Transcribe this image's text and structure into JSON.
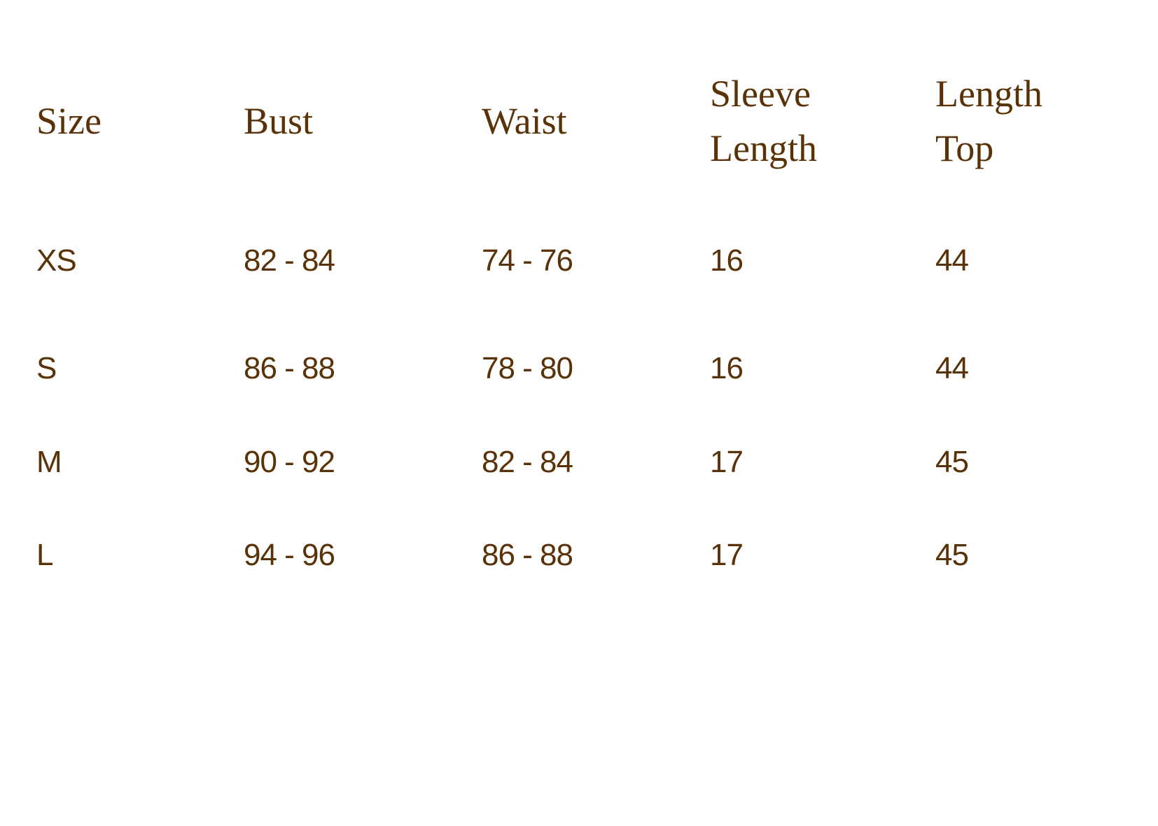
{
  "text_color": "#5a3208",
  "headers": [
    "Size",
    "Bust",
    "Waist",
    "Sleeve Length",
    "Length Top"
  ],
  "rows": [
    [
      "XS",
      "82 - 84",
      "74 - 76",
      "16",
      "44"
    ],
    [
      "S",
      "86 - 88",
      "78 - 80",
      "16",
      "44"
    ],
    [
      "M",
      "90 - 92",
      "82 - 84",
      "17",
      "45"
    ],
    [
      "L",
      "94 - 96",
      "86 - 88",
      "17",
      "45"
    ]
  ]
}
